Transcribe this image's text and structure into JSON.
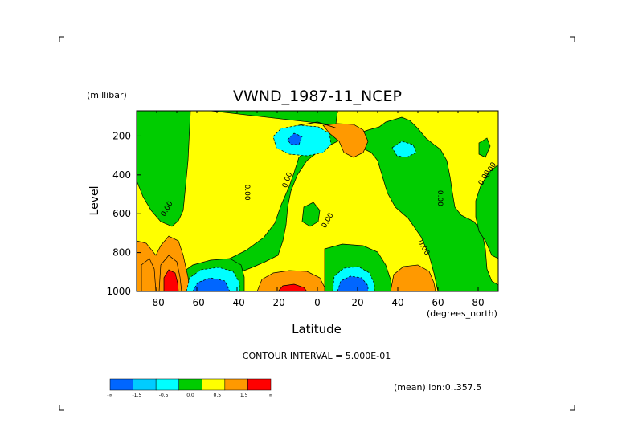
{
  "chart_data": {
    "type": "heatmap",
    "title": "VWND_1987-11_NCEP",
    "xlabel": "Latitude",
    "ylabel": "Level",
    "y_unit": "(millibar)",
    "x_unit": "(degrees_north)",
    "xlim": [
      -90,
      90
    ],
    "ylim": [
      1000,
      70
    ],
    "x_ticks": [
      -80,
      -60,
      -40,
      -20,
      0,
      20,
      40,
      60,
      80
    ],
    "x_tick_labels": [
      "-80",
      "-60",
      "-40",
      "-20",
      "0",
      "20",
      "40",
      "60",
      "80"
    ],
    "y_ticks": [
      200,
      400,
      600,
      800,
      1000
    ],
    "y_tick_labels": [
      "200",
      "400",
      "600",
      "800",
      "1000"
    ],
    "contour_interval_text": "CONTOUR INTERVAL = 5.000E-01",
    "footer_note": "(mean) lon:0..357.5",
    "contour_labels": [
      "0.00",
      "0.00",
      "0.00",
      "0.00",
      "0.00",
      "0.00",
      "0.00",
      "0.00"
    ],
    "colorbar": {
      "labels": [
        "-∞",
        "-1.5",
        "-0.5",
        "0.0",
        "0.5",
        "1.5",
        "∞"
      ],
      "colors": [
        "#0066ff",
        "#00ccff",
        "#00ffff",
        "#00cc00",
        "#ffff00",
        "#ff9900",
        "#ff0000"
      ]
    },
    "features": [
      {
        "kind": "negative",
        "level": 1,
        "lat": -10,
        "p": 170
      },
      {
        "kind": "negative",
        "level": 2,
        "lat": -13,
        "p": 165
      },
      {
        "kind": "positive",
        "level": 1,
        "lat": 17,
        "p": 175
      },
      {
        "kind": "negative",
        "level": 1,
        "lat": 40,
        "p": 205
      },
      {
        "kind": "negative",
        "level": 2,
        "lat": -52,
        "p": 950
      },
      {
        "kind": "negative",
        "level": 2,
        "lat": 17,
        "p": 940
      },
      {
        "kind": "positive",
        "level": 2,
        "lat": -15,
        "p": 960
      },
      {
        "kind": "positive",
        "level": 2,
        "lat": -80,
        "p": 900
      },
      {
        "kind": "positive",
        "level": 3,
        "lat": -75,
        "p": 960
      },
      {
        "kind": "positive",
        "level": 1,
        "lat": 47,
        "p": 930
      }
    ]
  }
}
